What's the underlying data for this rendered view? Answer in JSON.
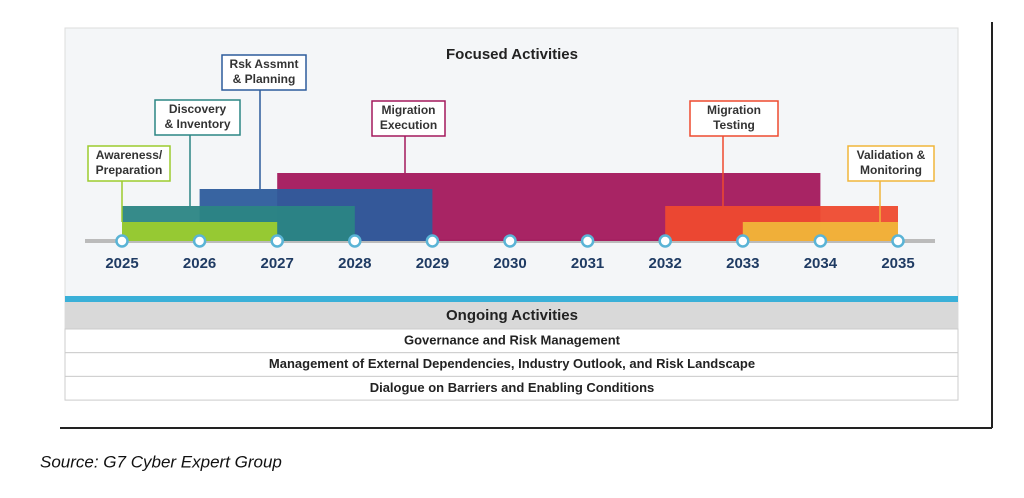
{
  "chart_data": {
    "type": "timeline",
    "title": "Focused Activities",
    "xlim": [
      2025,
      2035
    ],
    "xticks": [
      2025,
      2026,
      2027,
      2028,
      2029,
      2030,
      2031,
      2032,
      2033,
      2034,
      2035
    ],
    "tasks": [
      {
        "label": [
          "Migration",
          "Execution"
        ],
        "start": 2027,
        "end": 2034,
        "color": "#a3185c"
      },
      {
        "label": [
          "Rsk Assmnt",
          "& Planning"
        ],
        "start": 2026,
        "end": 2029,
        "color": "#2d5c9c"
      },
      {
        "label": [
          "Discovery",
          "& Inventory"
        ],
        "start": 2025,
        "end": 2028,
        "color": "#2b8584"
      },
      {
        "label": [
          "Migration",
          "Testing"
        ],
        "start": 2032,
        "end": 2035,
        "color": "#ee4a2f"
      },
      {
        "label": [
          "Awareness/",
          "Preparation"
        ],
        "start": 2025,
        "end": 2027,
        "color": "#9ccc2e"
      },
      {
        "label": [
          "Validation &",
          "Monitoring"
        ],
        "start": 2033,
        "end": 2035,
        "color": "#f0b53a"
      }
    ]
  },
  "ongoing": {
    "title": "Ongoing Activities",
    "rows": [
      "Governance and Risk Management",
      "Management of External Dependencies, Industry Outlook, and Risk Landscape",
      "Dialogue on Barriers and Enabling Conditions"
    ]
  },
  "source": "Source: G7 Cyber Expert Group"
}
